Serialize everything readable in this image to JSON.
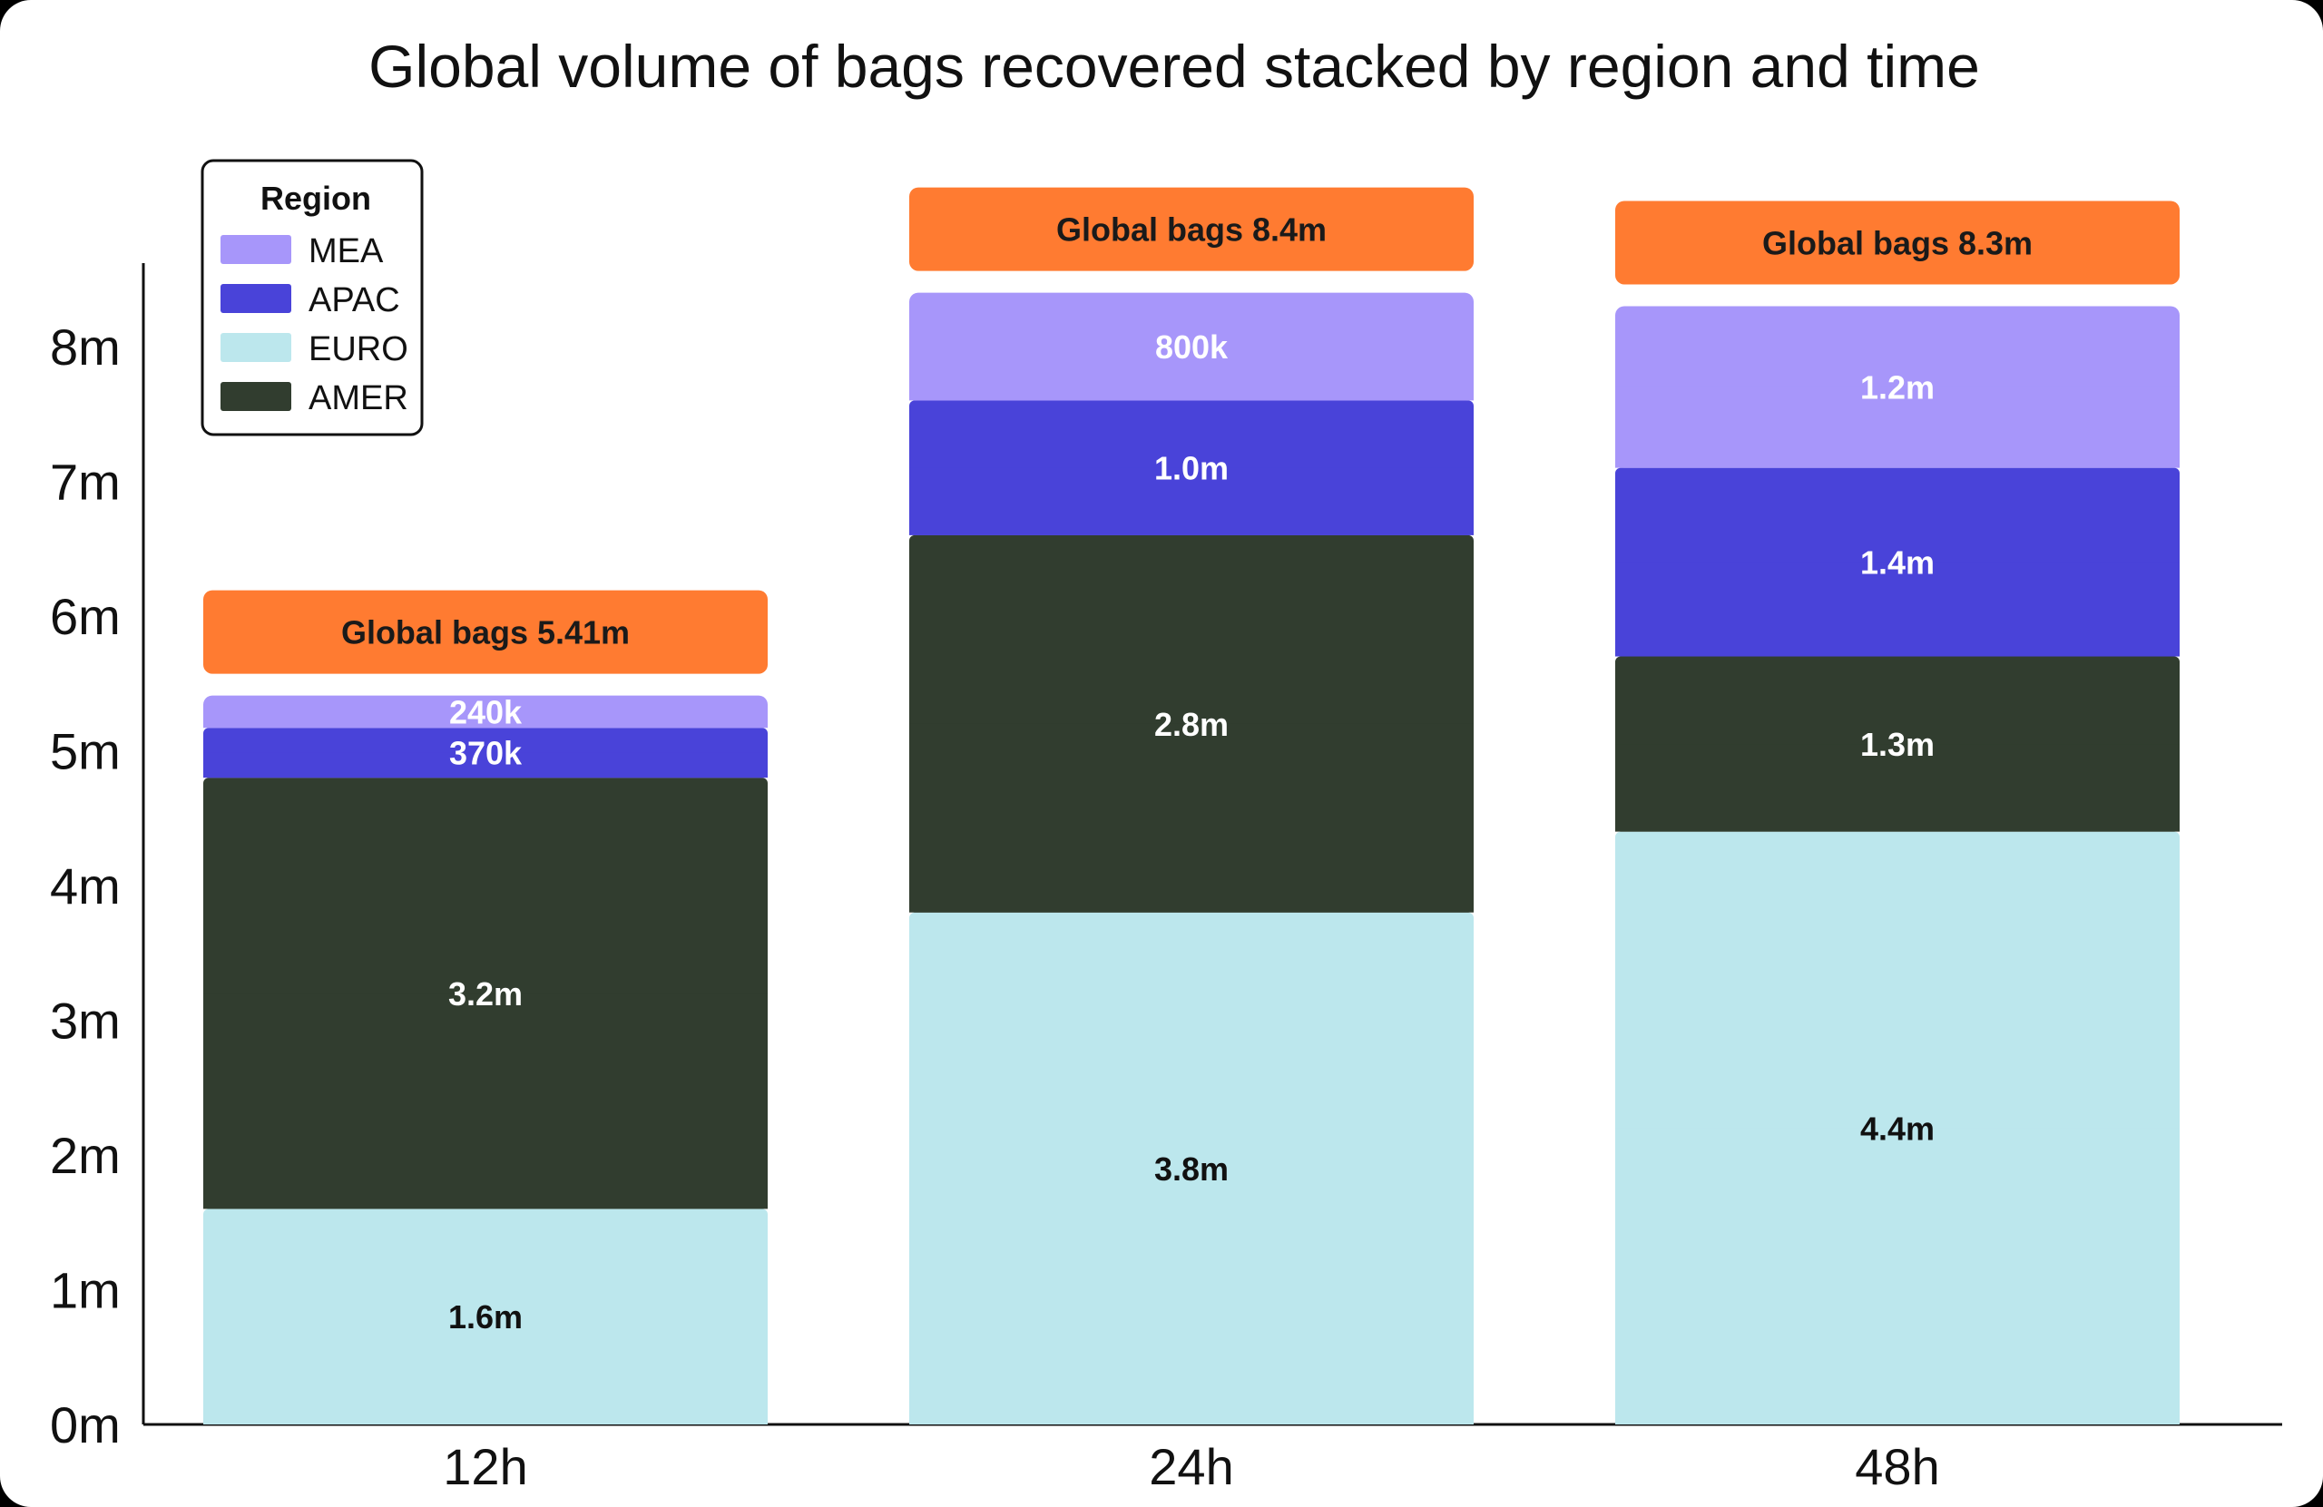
{
  "chart_data": {
    "type": "bar",
    "stacked": true,
    "title": "Global volume of bags recovered stacked by region and time",
    "categories": [
      "12h",
      "24h",
      "48h"
    ],
    "y_ticks": [
      "0m",
      "1m",
      "2m",
      "3m",
      "4m",
      "5m",
      "6m",
      "7m",
      "8m"
    ],
    "ylim": [
      0,
      8.5
    ],
    "legend": {
      "title": "Region",
      "placement": "top-left"
    },
    "series": [
      {
        "name": "EURO",
        "color": "#bce7ed",
        "label_color": "#111111",
        "values": [
          1.6,
          3.8,
          4.4
        ],
        "labels": [
          "1.6m",
          "3.8m",
          "4.4m"
        ]
      },
      {
        "name": "AMER",
        "color": "#313d2f",
        "label_color": "#ffffff",
        "values": [
          3.2,
          2.8,
          1.3
        ],
        "labels": [
          "3.2m",
          "2.8m",
          "1.3m"
        ]
      },
      {
        "name": "APAC",
        "color": "#4943d9",
        "label_color": "#ffffff",
        "values": [
          0.37,
          1.0,
          1.4
        ],
        "labels": [
          "370k",
          "1.0m",
          "1.4m"
        ]
      },
      {
        "name": "MEA",
        "color": "#a796fa",
        "label_color": "#ffffff",
        "values": [
          0.24,
          0.8,
          1.2
        ],
        "labels": [
          "240k",
          "800k",
          "1.2m"
        ]
      }
    ],
    "legend_order": [
      "MEA",
      "APAC",
      "EURO",
      "AMER"
    ],
    "totals": [
      "Global bags 5.41m",
      "Global bags 8.4m",
      "Global bags 8.3m"
    ],
    "total_color": "#ff7b31"
  }
}
